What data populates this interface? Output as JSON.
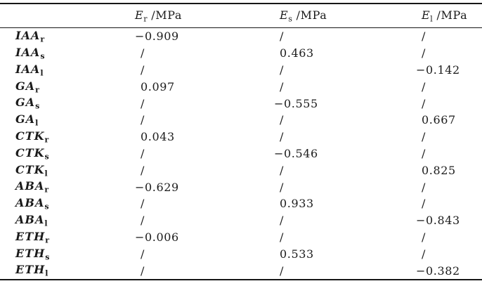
{
  "table": {
    "colors": {
      "text_color": "#1b1b1b",
      "rule_color": "#161616",
      "background": "#ffffff"
    },
    "headers": [
      {
        "base": "",
        "sub": "",
        "unit": ""
      },
      {
        "base": "E",
        "sub": "r",
        "unit": " /MPa"
      },
      {
        "base": "E",
        "sub": "s",
        "unit": " /MPa"
      },
      {
        "base": "E",
        "sub": "l",
        "unit": " /MPa"
      }
    ],
    "rows": [
      {
        "label_base": "IAA",
        "label_sub": "r",
        "er": "−0.909",
        "es": "/",
        "el": "/"
      },
      {
        "label_base": "IAA",
        "label_sub": "s",
        "er": "/",
        "es": "0.463",
        "el": "/"
      },
      {
        "label_base": "IAA",
        "label_sub": "l",
        "er": "/",
        "es": "/",
        "el": "−0.142"
      },
      {
        "label_base": "GA",
        "label_sub": "r",
        "er": "0.097",
        "es": "/",
        "el": "/"
      },
      {
        "label_base": "GA",
        "label_sub": "s",
        "er": "/",
        "es": "−0.555",
        "el": "/"
      },
      {
        "label_base": "GA",
        "label_sub": "l",
        "er": "/",
        "es": "/",
        "el": "0.667"
      },
      {
        "label_base": "CTK",
        "label_sub": "r",
        "er": "0.043",
        "es": "/",
        "el": "/"
      },
      {
        "label_base": "CTK",
        "label_sub": "s",
        "er": "/",
        "es": "−0.546",
        "el": "/"
      },
      {
        "label_base": "CTK",
        "label_sub": "l",
        "er": "/",
        "es": "/",
        "el": "0.825"
      },
      {
        "label_base": "ABA",
        "label_sub": "r",
        "er": "−0.629",
        "es": "/",
        "el": "/"
      },
      {
        "label_base": "ABA",
        "label_sub": "s",
        "er": "/",
        "es": "0.933",
        "el": "/"
      },
      {
        "label_base": "ABA",
        "label_sub": "l",
        "er": "/",
        "es": "/",
        "el": "−0.843"
      },
      {
        "label_base": "ETH",
        "label_sub": "r",
        "er": "−0.006",
        "es": "/",
        "el": "/"
      },
      {
        "label_base": "ETH",
        "label_sub": "s",
        "er": "/",
        "es": "0.533",
        "el": "/"
      },
      {
        "label_base": "ETH",
        "label_sub": "l",
        "er": "/",
        "es": "/",
        "el": "−0.382"
      }
    ]
  }
}
